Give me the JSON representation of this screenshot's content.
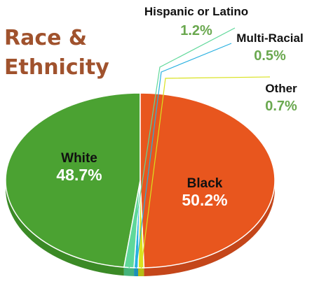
{
  "chart_data": {
    "type": "pie",
    "title": "Race & Ethnicity",
    "slices": [
      {
        "label": "White",
        "value": 48.7,
        "display": "48.7%",
        "color": "#4ba232",
        "side_color": "#3b8a26"
      },
      {
        "label": "Black",
        "value": 50.2,
        "display": "50.2%",
        "color": "#e8561e",
        "side_color": "#c4461a"
      },
      {
        "label": "Other",
        "value": 0.7,
        "display": "0.7%",
        "color": "#d9e21f",
        "side_color": "#b5bd14"
      },
      {
        "label": "Multi-Racial",
        "value": 0.5,
        "display": "0.5%",
        "color": "#27b0e0",
        "side_color": "#1d90b8"
      },
      {
        "label": "Hispanic or Latino",
        "value": 1.2,
        "display": "1.2%",
        "color": "#5fd89a",
        "side_color": "#45b37b"
      }
    ],
    "percent_color": "#6aa84f",
    "title_color": "#a0522d"
  }
}
